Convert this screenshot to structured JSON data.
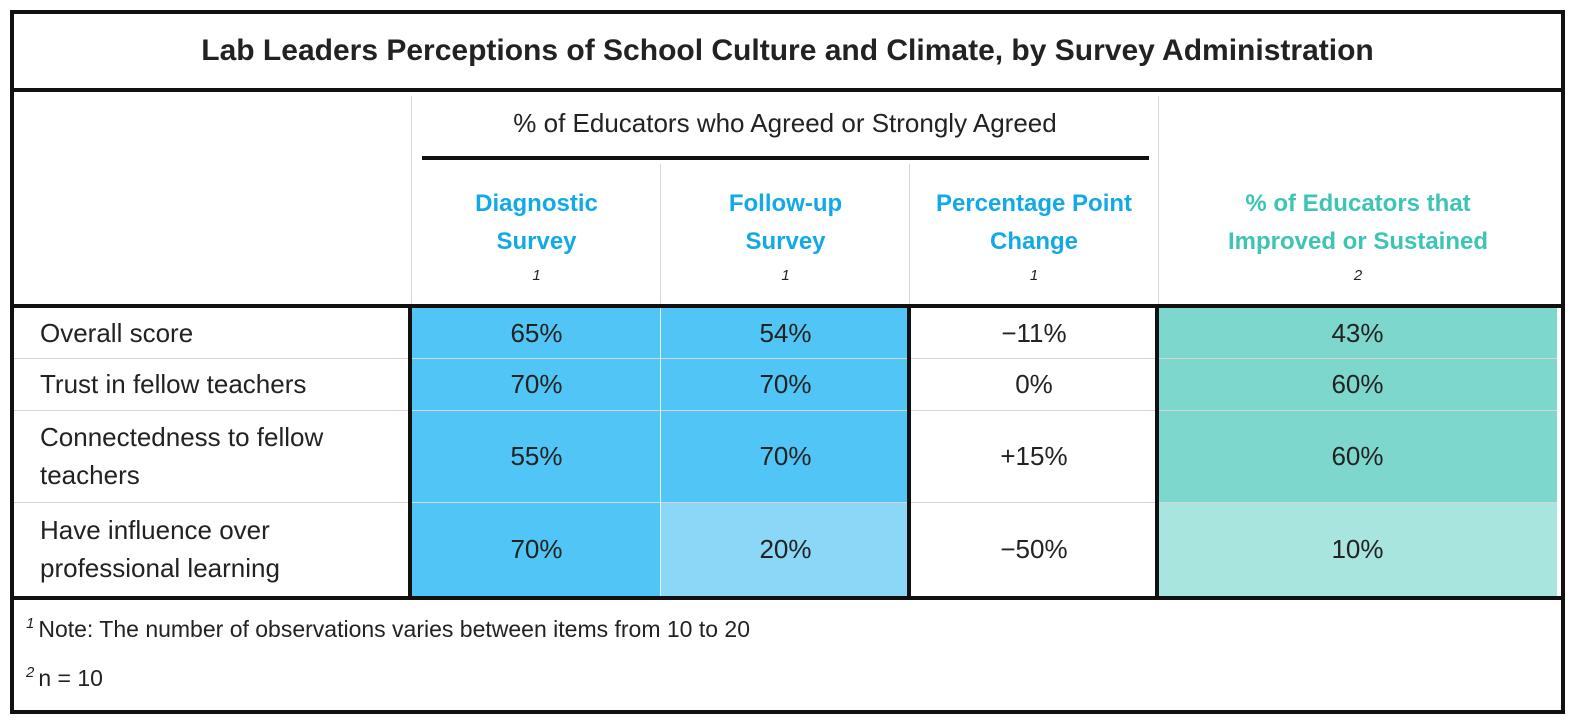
{
  "chart_data": {
    "type": "table",
    "title": "Lab Leaders Perceptions of School Culture and Climate, by Survey Administration",
    "spanning_header": "% of Educators who Agreed or Strongly Agreed",
    "columns": [
      {
        "label_line1": "Diagnostic",
        "label_line2": "Survey",
        "footnote": "1"
      },
      {
        "label_line1": "Follow-up",
        "label_line2": "Survey",
        "footnote": "1"
      },
      {
        "label_line1": "Percentage Point",
        "label_line2": "Change",
        "footnote": "1"
      },
      {
        "label_line1": "% of Educators that",
        "label_line2": "Improved or Sustained",
        "footnote": "2"
      }
    ],
    "rows": [
      {
        "label": "Overall score",
        "values": [
          "65%",
          "54%",
          "−11%",
          "43%"
        ]
      },
      {
        "label": "Trust in fellow teachers",
        "values": [
          "70%",
          "70%",
          "0%",
          "60%"
        ]
      },
      {
        "label": "Connectedness to fellow teachers",
        "values": [
          "55%",
          "70%",
          "+15%",
          "60%"
        ]
      },
      {
        "label": "Have influence over professional learning",
        "values": [
          "70%",
          "20%",
          "−50%",
          "10%"
        ]
      }
    ],
    "notes": [
      {
        "marker": "1",
        "text": "Note: The number of observations varies between items from 10 to 20"
      },
      {
        "marker": "2",
        "text": "n = 10"
      }
    ],
    "colors": {
      "blue_dark": "#51c5f5",
      "blue_light": "#8ad7f7",
      "teal_dark": "#7ed7cd",
      "teal_light": "#a7e5de",
      "header_blue": "#12a9e8",
      "header_teal": "#3cc4b4"
    }
  }
}
